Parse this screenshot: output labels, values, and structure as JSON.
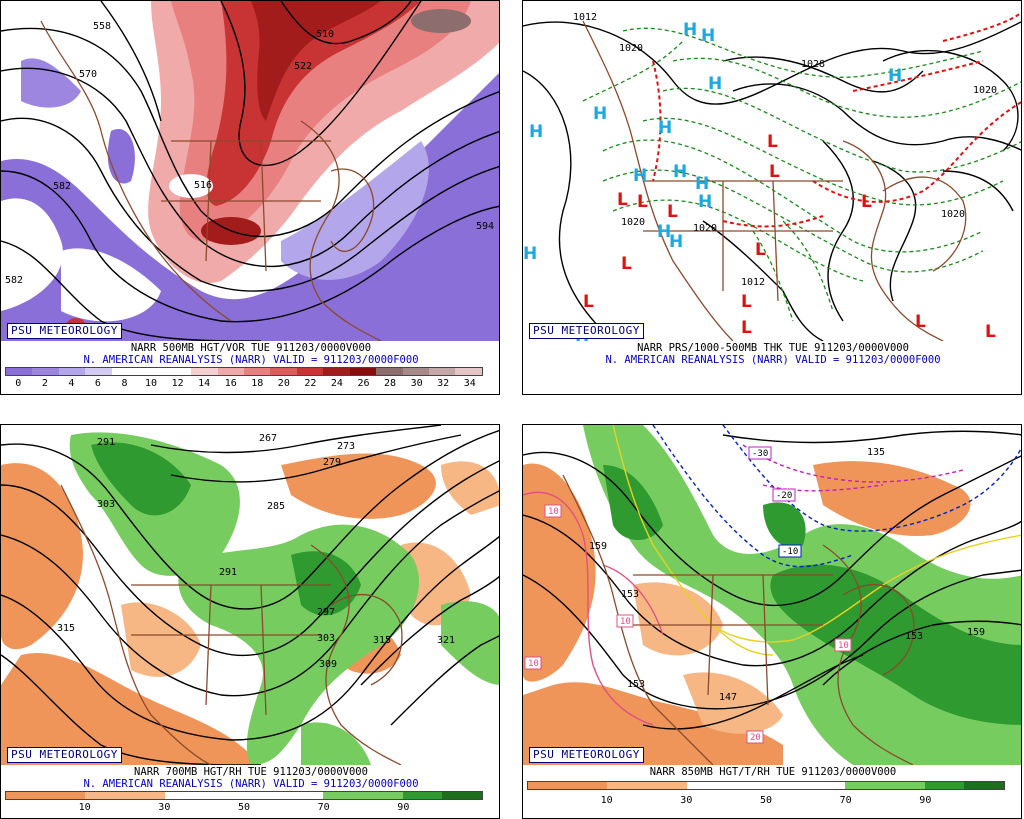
{
  "panels": {
    "top_left": {
      "badge": "PSU METEOROLOGY",
      "title": "NARR 500MB HGT/VOR TUE 911203/0000V000",
      "subtitle": "N. AMERICAN REANALYSIS (NARR) VALID = 911203/0000F000",
      "colorbar": [
        "#8a6fd8",
        "#9c86e0",
        "#b4a6ea",
        "#d4cbf3",
        "#ffffff",
        "#ffffff",
        "#ffffff",
        "#f6d0d0",
        "#f0aaaa",
        "#e88080",
        "#dd5b5b",
        "#c83434",
        "#a31c1c",
        "#8a0b0b",
        "#8d6d6d",
        "#a58a8a",
        "#c2a8a8",
        "#e4c6c6"
      ],
      "ticks": [
        "0",
        "2",
        "4",
        "6",
        "8",
        "10",
        "12",
        "14",
        "16",
        "18",
        "20",
        "22",
        "24",
        "26",
        "28",
        "30",
        "32",
        "34"
      ],
      "contour_labels": [
        "558",
        "510",
        "522",
        "570",
        "582",
        "594",
        "582",
        "516"
      ]
    },
    "top_right": {
      "badge": "PSU METEOROLOGY",
      "title": "NARR PRS/1000-500MB THK TUE 911203/0000V000",
      "subtitle": "N. AMERICAN REANALYSIS (NARR) VALID = 911203/0000F000",
      "contour_labels": [
        "1012",
        "1020",
        "1028",
        "1020",
        "1020",
        "1012",
        "1020",
        "1020"
      ],
      "high_symbol": "H",
      "low_symbol": "L"
    },
    "bottom_left": {
      "badge": "PSU METEOROLOGY",
      "title": "NARR 700MB HGT/RH TUE 911203/0000V000",
      "subtitle": "N. AMERICAN REANALYSIS (NARR) VALID = 911203/0000F000",
      "colorbar": [
        "#f0955a",
        "#f0955a",
        "#f6b784",
        "#f6b784",
        "#ffffff",
        "#ffffff",
        "#ffffff",
        "#ffffff",
        "#77cc60",
        "#77cc60",
        "#2f9a2f",
        "#1d6e1d"
      ],
      "ticks": [
        "10",
        "30",
        "50",
        "70",
        "90"
      ],
      "contour_labels": [
        "267",
        "273",
        "279",
        "285",
        "291",
        "297",
        "303",
        "309",
        "315",
        "315",
        "321",
        "291",
        "303"
      ]
    },
    "bottom_right": {
      "badge": "PSU METEOROLOGY",
      "title": "NARR 850MB HGT/T/RH TUE 911203/0000V000",
      "colorbar": [
        "#f0955a",
        "#f0955a",
        "#f6b784",
        "#f6b784",
        "#ffffff",
        "#ffffff",
        "#ffffff",
        "#ffffff",
        "#77cc60",
        "#77cc60",
        "#2f9a2f",
        "#1d6e1d"
      ],
      "ticks": [
        "10",
        "30",
        "50",
        "70",
        "90"
      ],
      "contour_labels": [
        "159",
        "153",
        "147",
        "153",
        "153",
        "159",
        "135"
      ],
      "temp_labels": [
        "-30",
        "-20",
        "-10",
        "10",
        "10",
        "10",
        "10",
        "20"
      ]
    }
  }
}
